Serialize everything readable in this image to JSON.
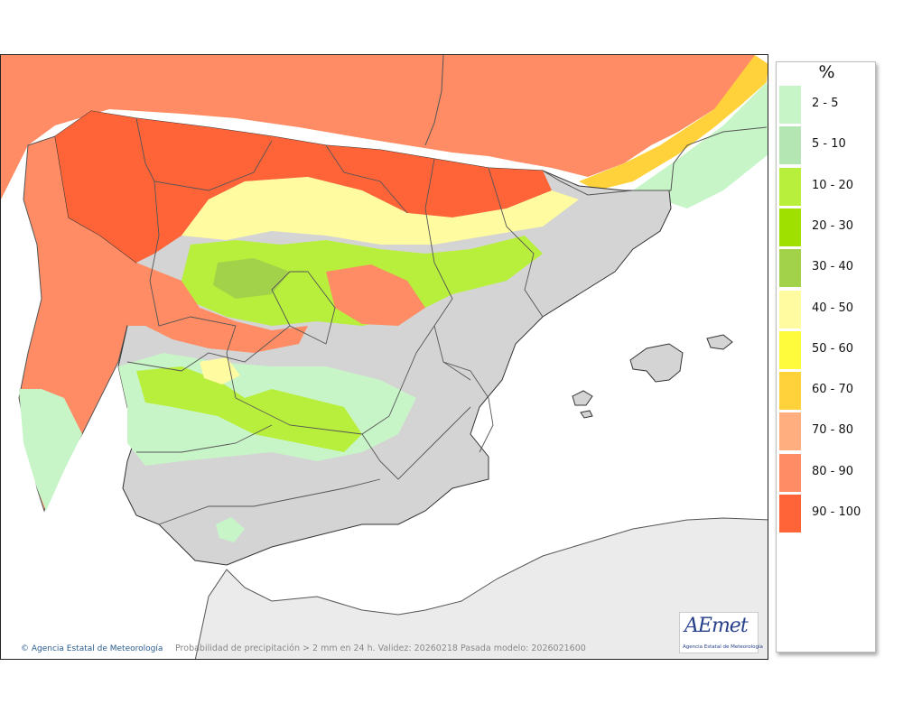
{
  "map": {
    "credit": "Agencia Estatal de Meteorología",
    "caption": "Probabilidad de precipitación > 2 mm en 24 h. Validez: 20260218 Pasada modelo: 2026021600",
    "logo_mark": "AEmet",
    "logo_sub": "Agencia Estatal de Meteorología",
    "colors": {
      "sea": "#ffffff",
      "land_no_data": "#d4d4d4",
      "africa": "#ebebeb",
      "c2_5": "#c8f5c8",
      "c5_10": "#b4e6b4",
      "c10_20": "#b8ef3c",
      "c20_30": "#a0e000",
      "c30_40": "#a2d24a",
      "c40_50": "#fefba0",
      "c50_60": "#fefb3c",
      "c60_70": "#ffd23c",
      "c70_80": "#ffae80",
      "c80_90": "#ff8c64",
      "c90_100": "#ff6438"
    }
  },
  "legend": {
    "unit": "%",
    "items": [
      {
        "label": "2 - 5",
        "color": "#c8f5c8"
      },
      {
        "label": "5 - 10",
        "color": "#b4e6b4"
      },
      {
        "label": "10 - 20",
        "color": "#b8ef3c"
      },
      {
        "label": "20 - 30",
        "color": "#a0e000"
      },
      {
        "label": "30 - 40",
        "color": "#a2d24a"
      },
      {
        "label": "40 - 50",
        "color": "#fefba0"
      },
      {
        "label": "50 - 60",
        "color": "#fefb3c"
      },
      {
        "label": "60 - 70",
        "color": "#ffd23c"
      },
      {
        "label": "70 - 80",
        "color": "#ffae80"
      },
      {
        "label": "80 - 90",
        "color": "#ff8c64"
      },
      {
        "label": "90 - 100",
        "color": "#ff6438"
      }
    ]
  }
}
